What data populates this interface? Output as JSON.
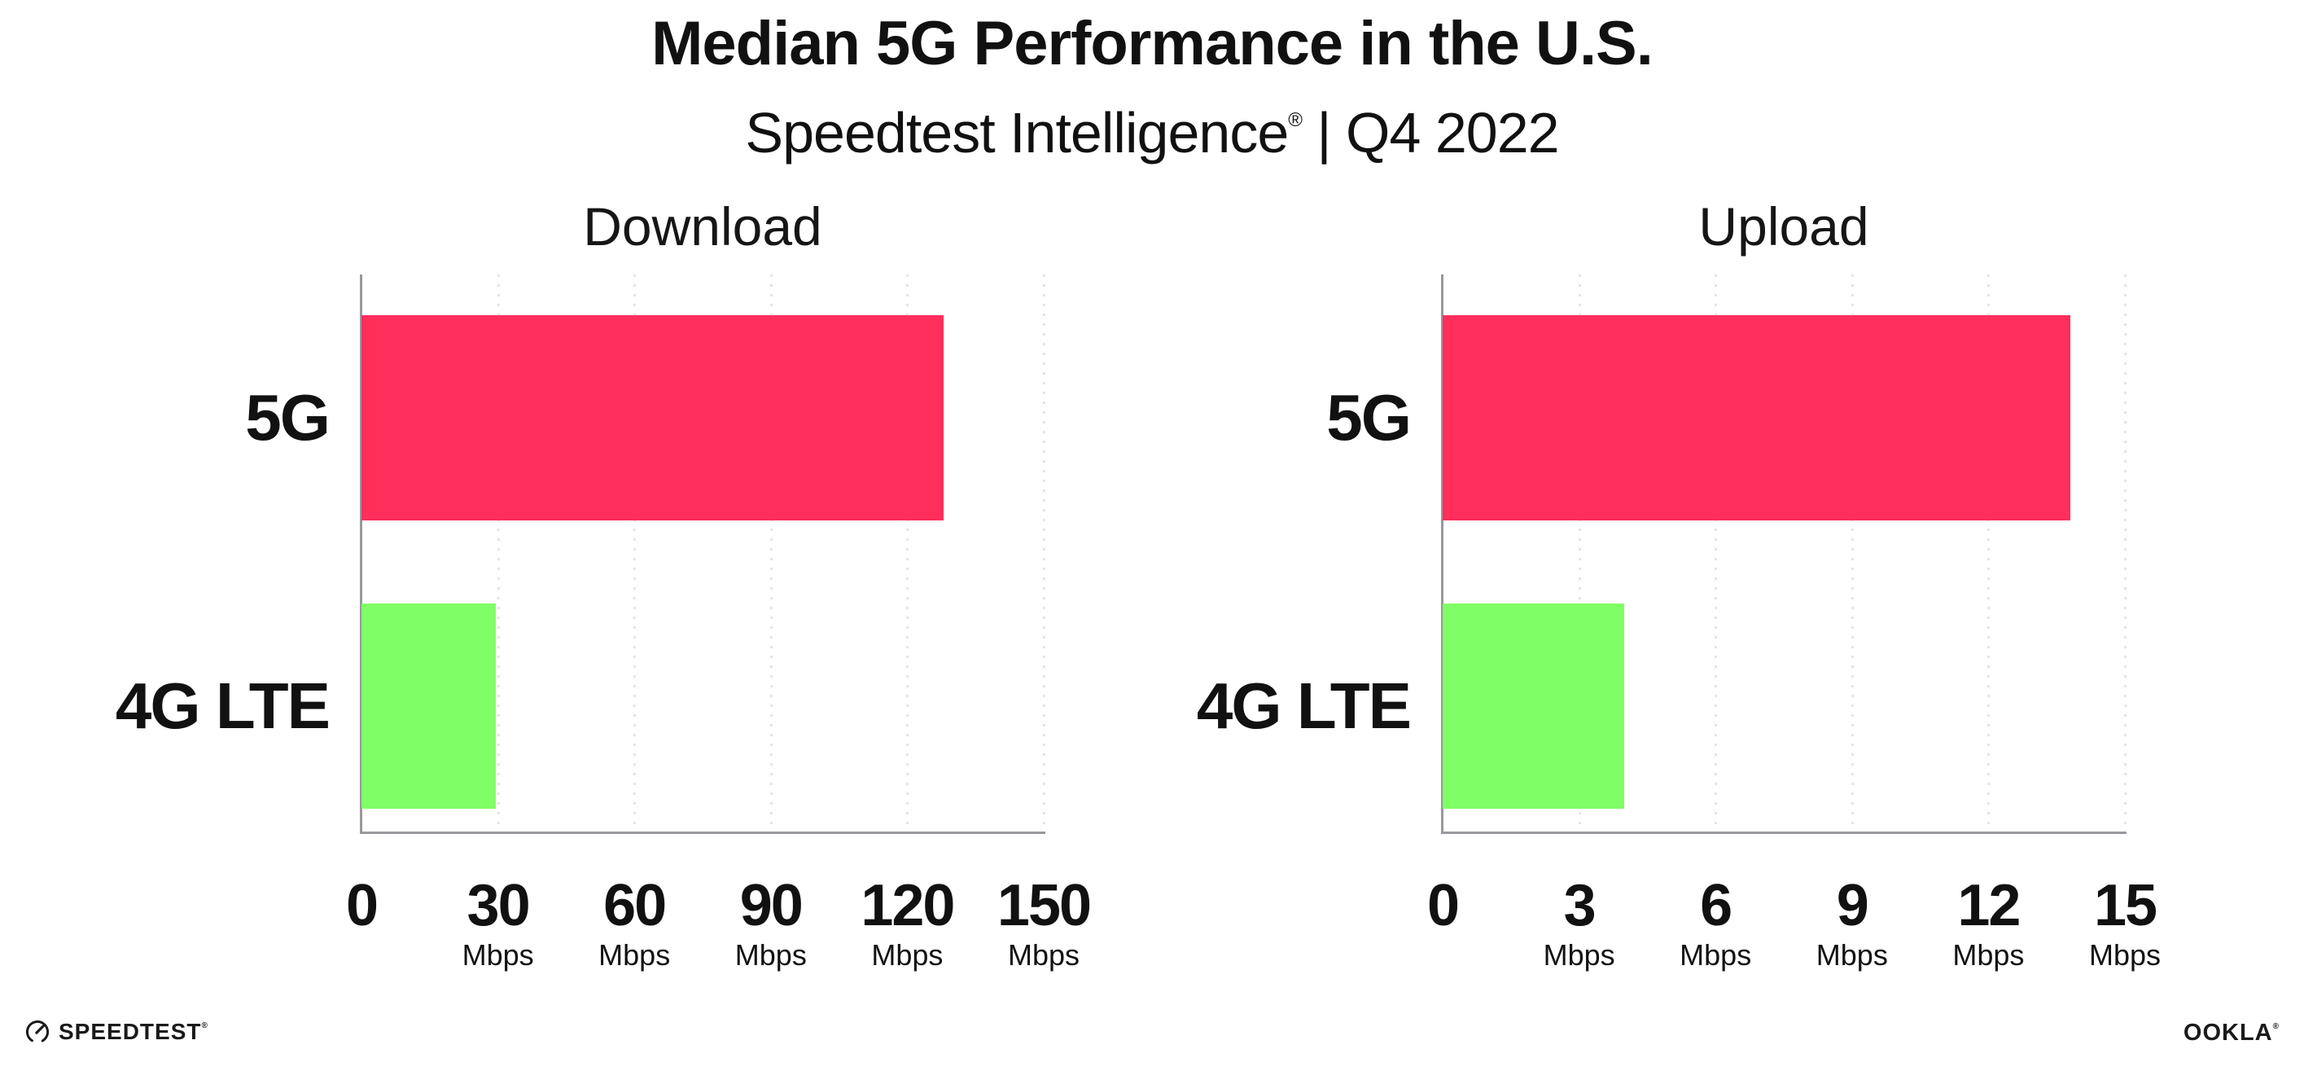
{
  "header": {
    "title": "Median 5G Performance in the U.S.",
    "subtitle_brand": "Speedtest Intelligence",
    "subtitle_registered": "®",
    "subtitle_rest": " | Q4 2022"
  },
  "colors": {
    "bar_5g": "#ff2e5b",
    "bar_4g_lte": "#80fe65",
    "axis": "#98989e",
    "gridline": "#e4e4ef",
    "text": "#111111"
  },
  "chart_data": [
    {
      "type": "bar",
      "orientation": "horizontal",
      "title": "Download",
      "categories": [
        "5G",
        "4G LTE"
      ],
      "values": [
        128,
        29.6
      ],
      "unit": "Mbps",
      "xlim": [
        0,
        150
      ],
      "xticks": [
        0,
        30,
        60,
        90,
        120,
        150
      ],
      "grid": "vertical-dotted",
      "legend": "none",
      "bar_colors": [
        "#ff2e5b",
        "#80fe65"
      ]
    },
    {
      "type": "bar",
      "orientation": "horizontal",
      "title": "Upload",
      "categories": [
        "5G",
        "4G LTE"
      ],
      "values": [
        13.8,
        4.0
      ],
      "unit": "Mbps",
      "xlim": [
        0,
        15
      ],
      "xticks": [
        0,
        3,
        6,
        9,
        12,
        15
      ],
      "grid": "vertical-dotted",
      "legend": "none",
      "bar_colors": [
        "#ff2e5b",
        "#80fe65"
      ]
    }
  ],
  "footer": {
    "speedtest_label": "SPEEDTEST",
    "speedtest_registered": "®",
    "ookla_label": "OOKLA",
    "ookla_registered": "®"
  }
}
